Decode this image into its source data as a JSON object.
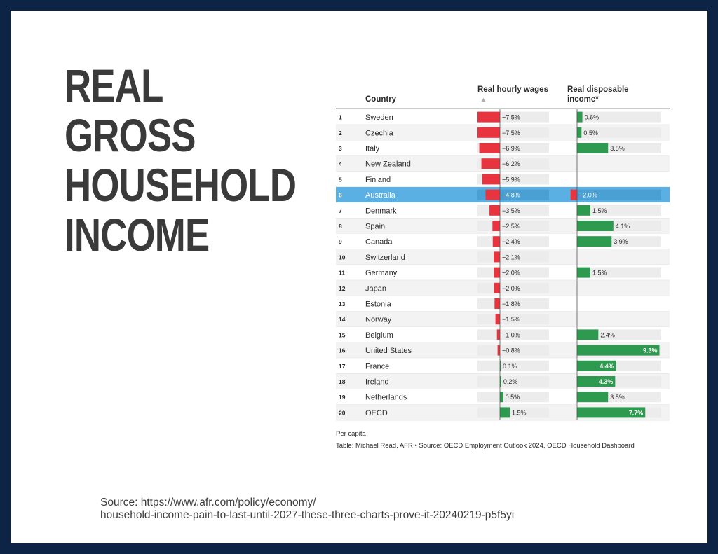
{
  "slide": {
    "title_lines": [
      "REAL",
      "GROSS",
      "HOUSEHOLD",
      "INCOME"
    ],
    "source_lines": [
      "Source: https://www.afr.com/policy/economy/",
      "household-income-pain-to-last-until-2027-these-three-charts-prove-it-20240219-p5f5yi"
    ]
  },
  "chart_data": {
    "type": "table",
    "columns": [
      "Country",
      "Real hourly wages",
      "Real disposable income*"
    ],
    "sort_indicator": "▲",
    "highlight_country": "Australia",
    "colors": {
      "negative": "#e8343f",
      "positive": "#2e9a4f",
      "track": "#ececec",
      "row_alt": "#f3f3f3",
      "highlight": "#5aafe3"
    },
    "wage_scale": [
      -7.5,
      7.5
    ],
    "income_scale": [
      -3.0,
      9.5
    ],
    "rows": [
      {
        "rank": "1",
        "country": "Sweden",
        "wages": -7.5,
        "wages_label": "−7.5%",
        "income": 0.6,
        "income_label": "0.6%"
      },
      {
        "rank": "2",
        "country": "Czechia",
        "wages": -7.5,
        "wages_label": "−7.5%",
        "income": 0.5,
        "income_label": "0.5%"
      },
      {
        "rank": "3",
        "country": "Italy",
        "wages": -6.9,
        "wages_label": "−6.9%",
        "income": 3.5,
        "income_label": "3.5%"
      },
      {
        "rank": "4",
        "country": "New Zealand",
        "wages": -6.2,
        "wages_label": "−6.2%",
        "income": null,
        "income_label": ""
      },
      {
        "rank": "5",
        "country": "Finland",
        "wages": -5.9,
        "wages_label": "−5.9%",
        "income": null,
        "income_label": ""
      },
      {
        "rank": "6",
        "country": "Australia",
        "wages": -4.8,
        "wages_label": "−4.8%",
        "income": -2.0,
        "income_label": "−2.0%"
      },
      {
        "rank": "7",
        "country": "Denmark",
        "wages": -3.5,
        "wages_label": "−3.5%",
        "income": 1.5,
        "income_label": "1.5%"
      },
      {
        "rank": "8",
        "country": "Spain",
        "wages": -2.5,
        "wages_label": "−2.5%",
        "income": 4.1,
        "income_label": "4.1%"
      },
      {
        "rank": "9",
        "country": "Canada",
        "wages": -2.4,
        "wages_label": "−2.4%",
        "income": 3.9,
        "income_label": "3.9%"
      },
      {
        "rank": "10",
        "country": "Switzerland",
        "wages": -2.1,
        "wages_label": "−2.1%",
        "income": null,
        "income_label": ""
      },
      {
        "rank": "11",
        "country": "Germany",
        "wages": -2.0,
        "wages_label": "−2.0%",
        "income": 1.5,
        "income_label": "1.5%"
      },
      {
        "rank": "12",
        "country": "Japan",
        "wages": -2.0,
        "wages_label": "−2.0%",
        "income": null,
        "income_label": ""
      },
      {
        "rank": "13",
        "country": "Estonia",
        "wages": -1.8,
        "wages_label": "−1.8%",
        "income": null,
        "income_label": ""
      },
      {
        "rank": "14",
        "country": "Norway",
        "wages": -1.5,
        "wages_label": "−1.5%",
        "income": null,
        "income_label": ""
      },
      {
        "rank": "15",
        "country": "Belgium",
        "wages": -1.0,
        "wages_label": "−1.0%",
        "income": 2.4,
        "income_label": "2.4%"
      },
      {
        "rank": "16",
        "country": "United States",
        "wages": -0.8,
        "wages_label": "−0.8%",
        "income": 9.3,
        "income_label": "9.3%"
      },
      {
        "rank": "17",
        "country": "France",
        "wages": 0.1,
        "wages_label": "0.1%",
        "income": 4.4,
        "income_label": "4.4%"
      },
      {
        "rank": "18",
        "country": "Ireland",
        "wages": 0.2,
        "wages_label": "0.2%",
        "income": 4.3,
        "income_label": "4.3%"
      },
      {
        "rank": "19",
        "country": "Netherlands",
        "wages": 0.5,
        "wages_label": "0.5%",
        "income": 3.5,
        "income_label": "3.5%"
      },
      {
        "rank": "20",
        "country": "OECD",
        "wages": 1.5,
        "wages_label": "1.5%",
        "income": 7.7,
        "income_label": "7.7%"
      }
    ],
    "footnote": "Per capita",
    "credit": "Table: Michael Read, AFR • Source: OECD Employment Outlook 2024, OECD Household Dashboard"
  }
}
